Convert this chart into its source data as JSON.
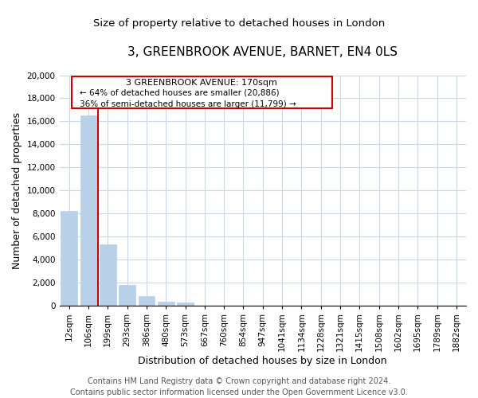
{
  "title": "3, GREENBROOK AVENUE, BARNET, EN4 0LS",
  "subtitle": "Size of property relative to detached houses in London",
  "xlabel": "Distribution of detached houses by size in London",
  "ylabel": "Number of detached properties",
  "bar_labels": [
    "12sqm",
    "106sqm",
    "199sqm",
    "293sqm",
    "386sqm",
    "480sqm",
    "573sqm",
    "667sqm",
    "760sqm",
    "854sqm",
    "947sqm",
    "1041sqm",
    "1134sqm",
    "1228sqm",
    "1321sqm",
    "1415sqm",
    "1508sqm",
    "1602sqm",
    "1695sqm",
    "1789sqm",
    "1882sqm"
  ],
  "bar_heights": [
    8200,
    16500,
    5300,
    1800,
    800,
    300,
    250,
    0,
    0,
    0,
    0,
    0,
    0,
    0,
    0,
    0,
    0,
    0,
    0,
    0,
    0
  ],
  "bar_color": "#b8d0e8",
  "highlight_line_color": "#cc0000",
  "ylim": [
    0,
    20000
  ],
  "yticks": [
    0,
    2000,
    4000,
    6000,
    8000,
    10000,
    12000,
    14000,
    16000,
    18000,
    20000
  ],
  "annotation_title": "3 GREENBROOK AVENUE: 170sqm",
  "annotation_line1": "← 64% of detached houses are smaller (20,886)",
  "annotation_line2": "36% of semi-detached houses are larger (11,799) →",
  "footer_line1": "Contains HM Land Registry data © Crown copyright and database right 2024.",
  "footer_line2": "Contains public sector information licensed under the Open Government Licence v3.0.",
  "background_color": "#ffffff",
  "grid_color": "#c8d8e8",
  "title_fontsize": 11,
  "subtitle_fontsize": 9.5,
  "axis_label_fontsize": 9,
  "tick_fontsize": 7.5,
  "footer_fontsize": 7
}
